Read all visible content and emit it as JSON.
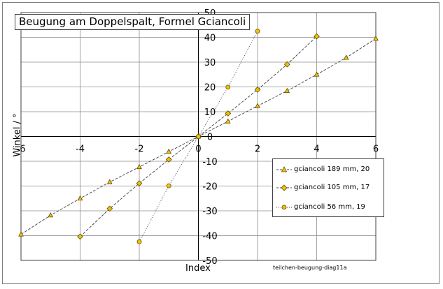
{
  "chart_data": {
    "type": "scatter",
    "title": "Beugung am Doppelspalt, Formel Gciancoli",
    "xlabel": "Index",
    "ylabel": "Winkel / °",
    "xlim": [
      -6,
      6
    ],
    "ylim": [
      -50,
      50
    ],
    "xticks": [
      "-6",
      "-4",
      "-2",
      "0",
      "2",
      "4",
      "6"
    ],
    "yticks": [
      "-50",
      "-40",
      "-30",
      "-20",
      "-10",
      "0",
      "10",
      "20",
      "30",
      "40",
      "50"
    ],
    "grid": true,
    "legend_position": "bottom-right",
    "footnote": "teilchen-beugung-diag11a",
    "series": [
      {
        "name": "gciancoli 189 mm, 20",
        "marker": "triangle",
        "line": "dashed",
        "x": [
          -6,
          -5,
          -4,
          -3,
          -2,
          -1,
          0,
          1,
          2,
          3,
          4,
          5,
          6
        ],
        "y": [
          -39.5,
          -31.8,
          -25.0,
          -18.4,
          -12.3,
          -6.1,
          0,
          6.1,
          12.3,
          18.4,
          25.0,
          31.8,
          39.5
        ]
      },
      {
        "name": "gciancoli 105 mm, 17",
        "marker": "diamond",
        "line": "dashed",
        "x": [
          -4,
          -3,
          -2,
          -1,
          0,
          1,
          2,
          3,
          4
        ],
        "y": [
          -40.4,
          -29.1,
          -18.9,
          -9.3,
          0,
          9.3,
          18.9,
          29.1,
          40.4
        ]
      },
      {
        "name": "gciancoli  56 mm, 19",
        "marker": "circle",
        "line": "dotted",
        "x": [
          -2,
          -1,
          0,
          1,
          2
        ],
        "y": [
          -42.5,
          -19.9,
          0,
          19.9,
          42.5
        ]
      }
    ],
    "colors": {
      "marker_fill": "#f2c200",
      "marker_stroke": "#5a4a00",
      "line": "#404040",
      "grid": "#8c8c8c"
    }
  }
}
